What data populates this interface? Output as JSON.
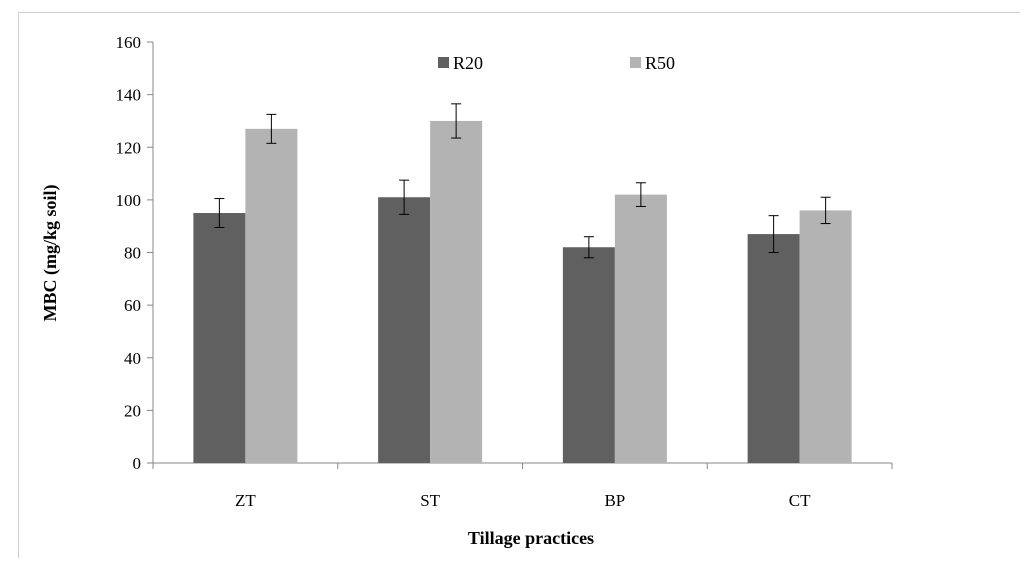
{
  "chart_data": {
    "type": "bar",
    "title": "",
    "xlabel": "Tillage practices",
    "ylabel": "MBC (mg/kg soil)",
    "categories": [
      "ZT",
      "ST",
      "BP",
      "CT"
    ],
    "ylim": [
      0,
      160
    ],
    "yticks": [
      0,
      20,
      40,
      60,
      80,
      100,
      120,
      140,
      160
    ],
    "grid": false,
    "legend_position": "top-center",
    "series": [
      {
        "name": "R20",
        "color": "#606060",
        "values": [
          95,
          101,
          82,
          87
        ],
        "errors": [
          5.5,
          6.5,
          4,
          7
        ]
      },
      {
        "name": "R50",
        "color": "#b3b3b3",
        "values": [
          127,
          130,
          102,
          96
        ],
        "errors": [
          5.5,
          6.5,
          4.5,
          5
        ]
      }
    ]
  }
}
